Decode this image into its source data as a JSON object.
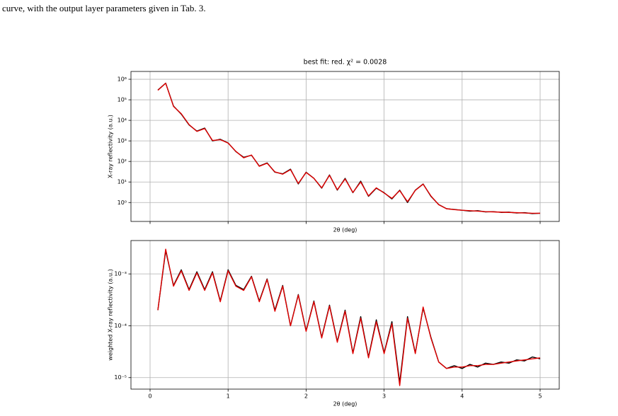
{
  "page": {
    "caption_line": "curve, with the output layer parameters given in Tab. 3."
  },
  "chart_data": [
    {
      "type": "line",
      "title": "best fit: red. χ² = 0.0028",
      "xlabel": "2θ (deg)",
      "ylabel": "X-ray reflectivity (a.u.)",
      "log_y": true,
      "grid": true,
      "show_xtick_labels": false,
      "xlim": [
        -0.245,
        5.245
      ],
      "ylim": [
        0.12,
        2400000
      ],
      "xticks": [
        0,
        1,
        2,
        3,
        4,
        5
      ],
      "yticks": [
        {
          "value": 1,
          "label": "10⁰"
        },
        {
          "value": 10,
          "label": "10¹"
        },
        {
          "value": 100,
          "label": "10²"
        },
        {
          "value": 1000,
          "label": "10³"
        },
        {
          "value": 10000,
          "label": "10⁴"
        },
        {
          "value": 100000,
          "label": "10⁵"
        },
        {
          "value": 1000000,
          "label": "10⁶"
        }
      ],
      "x": [
        0.1,
        0.2,
        0.3,
        0.4,
        0.5,
        0.6,
        0.7,
        0.8,
        0.9,
        1.0,
        1.1,
        1.2,
        1.3,
        1.4,
        1.5,
        1.6,
        1.7,
        1.8,
        1.9,
        2.0,
        2.1,
        2.2,
        2.3,
        2.4,
        2.5,
        2.6,
        2.7,
        2.8,
        2.9,
        3.0,
        3.1,
        3.2,
        3.3,
        3.4,
        3.5,
        3.6,
        3.7,
        3.8,
        3.9,
        4.0,
        4.1,
        4.2,
        4.3,
        4.4,
        4.5,
        4.6,
        4.7,
        4.8,
        4.9,
        5.0
      ],
      "series": [
        {
          "color": "#000000",
          "values": [
            300000,
            650000,
            50000,
            20000,
            6000,
            3000,
            4200,
            1000,
            1200,
            800,
            300,
            160,
            200,
            60,
            85,
            30,
            25,
            42,
            8,
            30,
            15,
            5,
            22,
            4,
            15,
            3,
            11,
            2,
            5,
            3,
            1.5,
            4,
            1,
            4,
            8,
            2,
            0.8,
            0.5,
            0.46,
            0.42,
            0.38,
            0.4,
            0.35,
            0.36,
            0.33,
            0.34,
            0.31,
            0.32,
            0.29,
            0.3
          ]
        },
        {
          "color": "#e00000",
          "values": [
            290000,
            640000,
            48000,
            21000,
            6200,
            2900,
            4000,
            1050,
            1150,
            780,
            310,
            150,
            205,
            58,
            82,
            31,
            24,
            40,
            8.5,
            29,
            15,
            5.2,
            21,
            4.2,
            14,
            3.1,
            10,
            2.1,
            5.2,
            2.9,
            1.6,
            3.8,
            1.1,
            3.9,
            7.8,
            2.1,
            0.78,
            0.5,
            0.45,
            0.42,
            0.4,
            0.38,
            0.36,
            0.35,
            0.34,
            0.33,
            0.32,
            0.31,
            0.3,
            0.3
          ]
        }
      ]
    },
    {
      "type": "line",
      "xlabel": "2θ (deg)",
      "ylabel": "weighted X-ray reflectivity (a.u.)",
      "log_y": true,
      "grid": true,
      "show_xtick_labels": true,
      "xlim": [
        -0.245,
        5.245
      ],
      "ylim": [
        6e-06,
        0.0044
      ],
      "xticks": [
        0,
        1,
        2,
        3,
        4,
        5
      ],
      "yticks": [
        {
          "value": 1e-05,
          "label": "10⁻⁵"
        },
        {
          "value": 0.0001,
          "label": "10⁻⁴"
        },
        {
          "value": 0.001,
          "label": "10⁻³"
        }
      ],
      "x": [
        0.1,
        0.2,
        0.3,
        0.4,
        0.5,
        0.6,
        0.7,
        0.8,
        0.9,
        1.0,
        1.1,
        1.2,
        1.3,
        1.4,
        1.5,
        1.6,
        1.7,
        1.8,
        1.9,
        2.0,
        2.1,
        2.2,
        2.3,
        2.4,
        2.5,
        2.6,
        2.7,
        2.8,
        2.9,
        3.0,
        3.1,
        3.2,
        3.3,
        3.4,
        3.5,
        3.6,
        3.7,
        3.8,
        3.9,
        4.0,
        4.1,
        4.2,
        4.3,
        4.4,
        4.5,
        4.6,
        4.7,
        4.8,
        4.9,
        5.0
      ],
      "series": [
        {
          "color": "#000000",
          "values": [
            0.0002,
            0.0028,
            0.0006,
            0.0012,
            0.0005,
            0.0011,
            0.0005,
            0.0011,
            0.0003,
            0.0012,
            0.0006,
            0.0005,
            0.0009,
            0.0003,
            0.0008,
            0.0002,
            0.0006,
            0.0001,
            0.0004,
            8e-05,
            0.0003,
            6e-05,
            0.00025,
            5e-05,
            0.0002,
            3e-05,
            0.00015,
            2.5e-05,
            0.00013,
            3e-05,
            0.00012,
            8e-06,
            0.00015,
            3e-05,
            0.00022,
            6e-05,
            2e-05,
            1.5e-05,
            1.7e-05,
            1.5e-05,
            1.8e-05,
            1.6e-05,
            1.9e-05,
            1.8e-05,
            2e-05,
            1.9e-05,
            2.2e-05,
            2.1e-05,
            2.5e-05,
            2.3e-05
          ]
        },
        {
          "color": "#e00000",
          "values": [
            0.0002,
            0.003,
            0.00058,
            0.00115,
            0.00048,
            0.00105,
            0.00048,
            0.00105,
            0.00029,
            0.00115,
            0.00058,
            0.00048,
            0.00088,
            0.00029,
            0.00078,
            0.00019,
            0.00058,
            0.0001,
            0.00039,
            7.8e-05,
            0.00029,
            5.8e-05,
            0.00024,
            4.8e-05,
            0.00019,
            2.9e-05,
            0.00014,
            2.4e-05,
            0.00012,
            2.9e-05,
            0.00011,
            7e-06,
            0.00014,
            2.9e-05,
            0.00023,
            5.8e-05,
            2e-05,
            1.5e-05,
            1.6e-05,
            1.6e-05,
            1.7e-05,
            1.7e-05,
            1.8e-05,
            1.8e-05,
            1.9e-05,
            2e-05,
            2.1e-05,
            2.2e-05,
            2.3e-05,
            2.4e-05
          ]
        }
      ]
    }
  ]
}
